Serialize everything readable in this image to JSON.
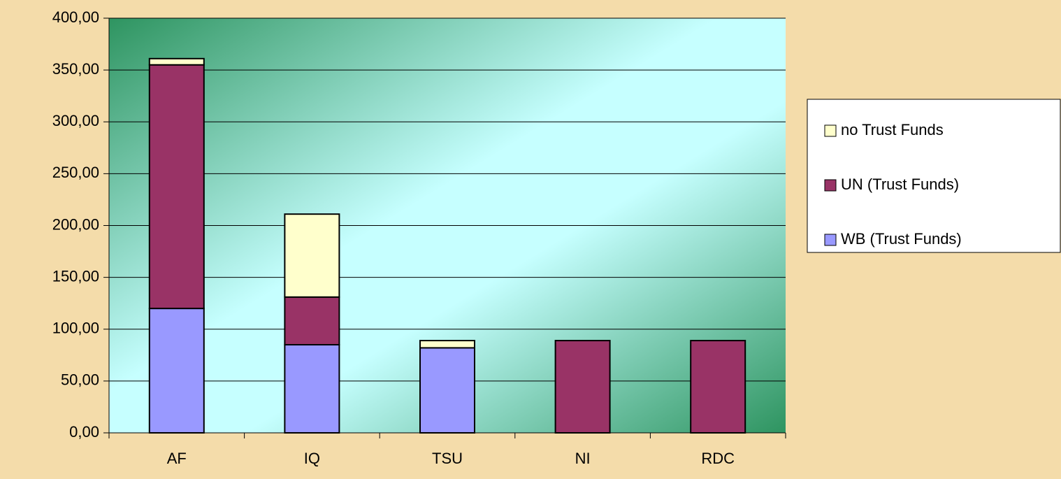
{
  "chart_data": {
    "type": "stacked_bar",
    "categories": [
      "AF",
      "IQ",
      "TSU",
      "NI",
      "RDC"
    ],
    "series": [
      {
        "name": "WB (Trust Funds)",
        "color": "#9999ff",
        "values": [
          120,
          85,
          82,
          0,
          0
        ]
      },
      {
        "name": "UN (Trust Funds)",
        "color": "#993366",
        "values": [
          235,
          46,
          0,
          89,
          89
        ]
      },
      {
        "name": "no Trust Funds",
        "color": "#ffffcc",
        "values": [
          6,
          80,
          7,
          0,
          0
        ]
      }
    ],
    "ylim": [
      0,
      400
    ],
    "yticks": [
      {
        "value": 0,
        "label": "0,00"
      },
      {
        "value": 50,
        "label": "50,00"
      },
      {
        "value": 100,
        "label": "100,00"
      },
      {
        "value": 150,
        "label": "150,00"
      },
      {
        "value": 200,
        "label": "200,00"
      },
      {
        "value": 250,
        "label": "250,00"
      },
      {
        "value": 300,
        "label": "300,00"
      },
      {
        "value": 350,
        "label": "350,00"
      },
      {
        "value": 400,
        "label": "400,00"
      }
    ],
    "grid": true,
    "legend": "right"
  }
}
